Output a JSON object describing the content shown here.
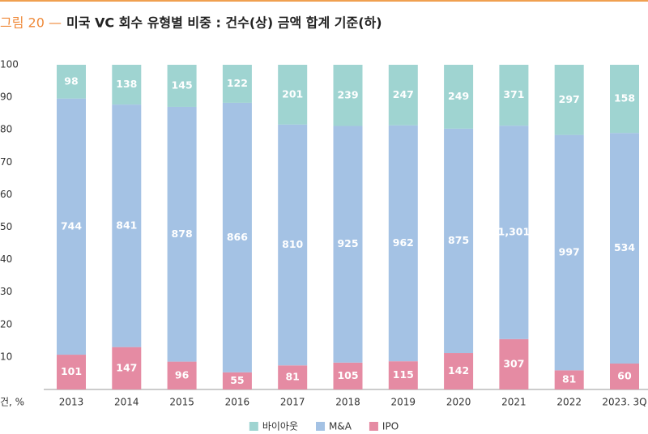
{
  "chart_data": {
    "type": "bar",
    "stacking": "percent",
    "figure_label": "그림 20 —",
    "title": "미국 VC 회수 유형별 비중 : 건수(상) 금액 합계 기준(하)",
    "unit_label": "건, %",
    "categories": [
      "2013",
      "2014",
      "2015",
      "2016",
      "2017",
      "2018",
      "2019",
      "2020",
      "2021",
      "2022",
      "2023. 3Q"
    ],
    "series": [
      {
        "name": "IPO",
        "color": "#e58ba3",
        "values": [
          101,
          147,
          96,
          55,
          81,
          105,
          115,
          142,
          307,
          81,
          60
        ]
      },
      {
        "name": "M&A",
        "color": "#a4c2e4",
        "values": [
          744,
          841,
          878,
          866,
          810,
          925,
          962,
          875,
          1301,
          997,
          534
        ],
        "value_labels": [
          "744",
          "841",
          "878",
          "866",
          "810",
          "925",
          "962",
          "875",
          "1,301",
          "997",
          "534"
        ]
      },
      {
        "name": "바이아웃",
        "color": "#9fd4d1",
        "values": [
          98,
          138,
          145,
          122,
          201,
          239,
          247,
          249,
          371,
          297,
          158
        ]
      }
    ],
    "legend_order": [
      2,
      1,
      0
    ],
    "ylim": [
      0,
      100
    ],
    "yticks": [
      10,
      20,
      30,
      40,
      50,
      60,
      70,
      80,
      90,
      100
    ],
    "grid": false
  }
}
